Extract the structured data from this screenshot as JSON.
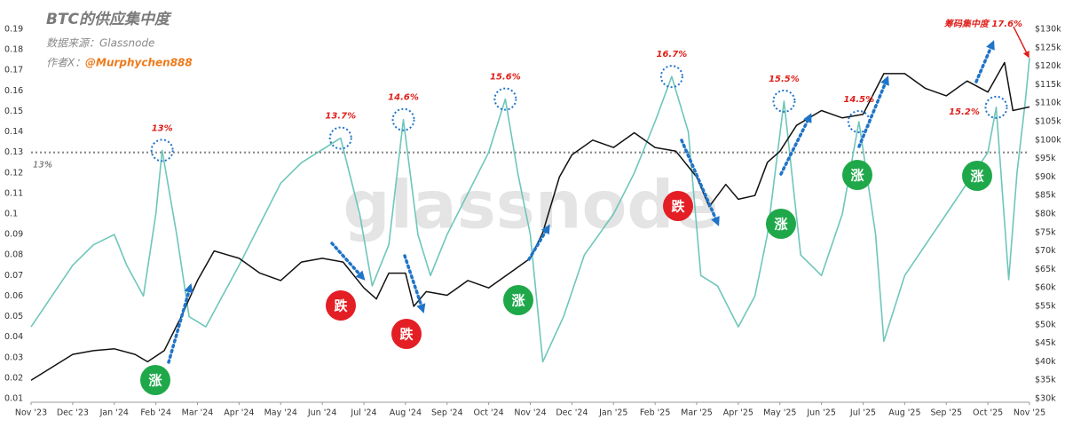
{
  "chart_data": {
    "type": "line",
    "title": "BTC的供应集中度",
    "source": "数据来源：Glassnode",
    "author_prefix": "作者X：",
    "author": "@Murphychen888",
    "watermark": "glassnode",
    "xlim": [
      0,
      24
    ],
    "xticks": [
      {
        "value": 0,
        "label": "Nov '23"
      },
      {
        "value": 1,
        "label": "Dec '23"
      },
      {
        "value": 2,
        "label": "Jan '24"
      },
      {
        "value": 3,
        "label": "Feb '24"
      },
      {
        "value": 4,
        "label": "Mar '24"
      },
      {
        "value": 5,
        "label": "Apr '24"
      },
      {
        "value": 6,
        "label": "May '24"
      },
      {
        "value": 7,
        "label": "Jun '24"
      },
      {
        "value": 8,
        "label": "Jul '24"
      },
      {
        "value": 9,
        "label": "Aug '24"
      },
      {
        "value": 10,
        "label": "Sep '24"
      },
      {
        "value": 11,
        "label": "Oct '24"
      },
      {
        "value": 12,
        "label": "Nov '24"
      },
      {
        "value": 13,
        "label": "Dec '24"
      },
      {
        "value": 14,
        "label": "Jan '25"
      },
      {
        "value": 15,
        "label": "Feb '25"
      },
      {
        "value": 16,
        "label": "Mar '25"
      },
      {
        "value": 17,
        "label": "Apr '25"
      },
      {
        "value": 18,
        "label": "May '25"
      },
      {
        "value": 19,
        "label": "Jun '25"
      },
      {
        "value": 20,
        "label": "Jul '25"
      },
      {
        "value": 21,
        "label": "Aug '25"
      },
      {
        "value": 22,
        "label": "Sep '25"
      },
      {
        "value": 23,
        "label": "Oct '25"
      },
      {
        "value": 24,
        "label": "Nov '25"
      }
    ],
    "ylim": [
      0.01,
      0.19
    ],
    "yticks": [
      0.01,
      0.02,
      0.03,
      0.04,
      0.05,
      0.06,
      0.07,
      0.08,
      0.09,
      0.1,
      0.11,
      0.12,
      0.13,
      0.14,
      0.15,
      0.16,
      0.17,
      0.18,
      0.19
    ],
    "y2lim": [
      30000,
      130000
    ],
    "y2ticks": [
      {
        "value": 30000,
        "label": "$30k"
      },
      {
        "value": 35000,
        "label": "$35k"
      },
      {
        "value": 40000,
        "label": "$40k"
      },
      {
        "value": 45000,
        "label": "$45k"
      },
      {
        "value": 50000,
        "label": "$50k"
      },
      {
        "value": 55000,
        "label": "$55k"
      },
      {
        "value": 60000,
        "label": "$60k"
      },
      {
        "value": 65000,
        "label": "$65k"
      },
      {
        "value": 70000,
        "label": "$70k"
      },
      {
        "value": 75000,
        "label": "$75k"
      },
      {
        "value": 80000,
        "label": "$80k"
      },
      {
        "value": 85000,
        "label": "$85k"
      },
      {
        "value": 90000,
        "label": "$90k"
      },
      {
        "value": 95000,
        "label": "$95k"
      },
      {
        "value": 100000,
        "label": "$100k"
      },
      {
        "value": 105000,
        "label": "$105k"
      },
      {
        "value": 110000,
        "label": "$110k"
      },
      {
        "value": 115000,
        "label": "$115k"
      },
      {
        "value": 120000,
        "label": "$120k"
      },
      {
        "value": 125000,
        "label": "$125k"
      },
      {
        "value": 130000,
        "label": "$130k"
      }
    ],
    "series": [
      {
        "color": "#6ec6ba",
        "axis": "y",
        "x": [
          0,
          0.5,
          1,
          1.5,
          2,
          2.3,
          2.7,
          3.0,
          3.15,
          3.5,
          3.8,
          4.2,
          4.6,
          5,
          5.5,
          6,
          6.5,
          7.44,
          7.9,
          8.2,
          8.6,
          8.95,
          9.3,
          9.6,
          10,
          10.5,
          11.0,
          11.4,
          11.7,
          12.0,
          12.3,
          12.8,
          13.3,
          14,
          14.5,
          15,
          15.4,
          15.8,
          16.1,
          16.5,
          17.0,
          17.4,
          17.7,
          18.1,
          18.5,
          19.0,
          19.5,
          19.9,
          20.3,
          20.5,
          21,
          21.5,
          22,
          22.5,
          23,
          23.2,
          23.5,
          23.7,
          23.9,
          24
        ],
        "values": [
          0.045,
          0.06,
          0.075,
          0.085,
          0.09,
          0.075,
          0.06,
          0.1,
          0.131,
          0.09,
          0.05,
          0.045,
          0.06,
          0.075,
          0.095,
          0.115,
          0.125,
          0.137,
          0.1,
          0.065,
          0.085,
          0.146,
          0.09,
          0.07,
          0.09,
          0.11,
          0.13,
          0.156,
          0.12,
          0.09,
          0.028,
          0.05,
          0.08,
          0.1,
          0.12,
          0.145,
          0.167,
          0.14,
          0.07,
          0.065,
          0.045,
          0.06,
          0.09,
          0.155,
          0.08,
          0.07,
          0.1,
          0.145,
          0.09,
          0.038,
          0.07,
          0.085,
          0.1,
          0.115,
          0.13,
          0.152,
          0.068,
          0.12,
          0.155,
          0.176
        ]
      },
      {
        "color": "#111111",
        "axis": "y2",
        "x": [
          0,
          1,
          1.5,
          2,
          2.5,
          2.8,
          3.2,
          3.6,
          4,
          4.4,
          5,
          5.5,
          6,
          6.5,
          7,
          7.5,
          8,
          8.3,
          8.6,
          9,
          9.2,
          9.5,
          10,
          10.5,
          11,
          11.5,
          12,
          12.3,
          12.7,
          13,
          13.5,
          14,
          14.5,
          15,
          15.5,
          16,
          16.3,
          16.7,
          17,
          17.4,
          17.7,
          18,
          18.4,
          19,
          19.5,
          20,
          20.5,
          21,
          21.5,
          22,
          22.5,
          23,
          23.4,
          23.6,
          24
        ],
        "values": [
          35000,
          42000,
          43000,
          43500,
          42000,
          40000,
          43000,
          52000,
          62000,
          70000,
          68000,
          64000,
          62000,
          67000,
          68000,
          67000,
          60000,
          57000,
          64000,
          64000,
          55000,
          59000,
          58000,
          62000,
          60000,
          64000,
          68000,
          75000,
          90000,
          96000,
          100000,
          98000,
          102000,
          98000,
          97000,
          90000,
          82000,
          88000,
          84000,
          85000,
          94000,
          97000,
          104000,
          108000,
          106000,
          107000,
          118000,
          118000,
          114000,
          112000,
          116000,
          113000,
          121000,
          108000,
          109000
        ]
      }
    ],
    "reference_line": {
      "value": 0.13,
      "label": "13%"
    },
    "annotations": [
      {
        "label": "13%",
        "x": 3.15,
        "value": 0.131
      },
      {
        "label": "13.7%",
        "x": 7.44,
        "value": 0.137
      },
      {
        "label": "14.6%",
        "x": 8.95,
        "value": 0.146
      },
      {
        "label": "15.6%",
        "x": 11.4,
        "value": 0.156
      },
      {
        "label": "16.7%",
        "x": 15.4,
        "value": 0.167
      },
      {
        "label": "15.5%",
        "x": 18.1,
        "value": 0.155
      },
      {
        "label": "14.5%",
        "x": 19.9,
        "value": 0.145
      },
      {
        "label": "15.2%",
        "x": 23.2,
        "value": 0.152
      },
      {
        "label": "筹码集中度 17.6%",
        "x": 24,
        "value": 0.176
      }
    ],
    "badges": [
      "涨",
      "跌",
      "跌",
      "涨",
      "跌",
      "涨",
      "涨",
      "涨"
    ]
  }
}
